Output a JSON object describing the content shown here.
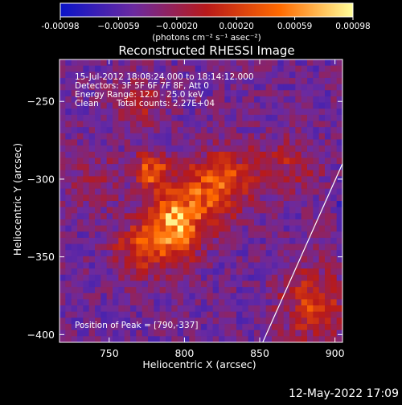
{
  "chart_data": {
    "type": "heatmap",
    "title": "Reconstructed RHESSI Image",
    "xlabel": "Heliocentric X (arcsec)",
    "ylabel": "Heliocentric Y (arcsec)",
    "xlim": [
      717,
      905
    ],
    "ylim": [
      -405,
      -223
    ],
    "x_ticks": [
      750,
      800,
      850,
      900
    ],
    "y_ticks": [
      -250,
      -300,
      -350,
      -400
    ],
    "x_tick_labels": [
      "750",
      "800",
      "850",
      "900"
    ],
    "y_tick_labels": [
      "−250",
      "−300",
      "−350",
      "−400"
    ],
    "grid": false,
    "colorbar": {
      "range": [
        -0.00098,
        0.00098
      ],
      "tick_values": [
        -0.00098,
        -0.00059,
        -0.0002,
        0.0002,
        0.00059,
        0.00098
      ],
      "tick_labels": [
        "-0.00098",
        "−0.00059",
        "−0.00020",
        "0.00020",
        "0.00059",
        "0.00098"
      ],
      "units_label": "(photons cm⁻² s⁻¹ asec⁻²)",
      "colors": [
        "#0a14c8",
        "#6b2aa0",
        "#b81a1a",
        "#ff6a00",
        "#ffff9a"
      ]
    },
    "annotations": [
      "15-Jul-2012 18:08:24.000 to 18:14:12.000",
      "Detectors: 3F 5F 6F 7F 8F, Att 0",
      "Energy Range: 12.0 - 25.0 keV",
      "Clean",
      "Total counts: 2.27E+04"
    ],
    "peak_label": "Position of Peak = [790,-337]",
    "peak_position": [
      790,
      -337
    ],
    "limb_line": [
      [
        852,
        -405
      ],
      [
        905,
        -290
      ]
    ],
    "limb_color": "#ffffff",
    "grid_nx": 48,
    "grid_ny": 46,
    "sources": [
      {
        "x": 793,
        "y": -330,
        "sx": 12,
        "sy": 16,
        "amp": 0.00098
      },
      {
        "x": 778,
        "y": -294,
        "sx": 8,
        "sy": 8,
        "amp": 0.0008
      },
      {
        "x": 815,
        "y": -312,
        "sx": 16,
        "sy": 14,
        "amp": 0.00065
      },
      {
        "x": 770,
        "y": -345,
        "sx": 12,
        "sy": 12,
        "amp": 0.0006
      },
      {
        "x": 830,
        "y": -295,
        "sx": 14,
        "sy": 12,
        "amp": 0.00045
      },
      {
        "x": 770,
        "y": -250,
        "sx": 12,
        "sy": 10,
        "amp": 0.0004
      },
      {
        "x": 885,
        "y": -380,
        "sx": 14,
        "sy": 18,
        "amp": 0.0006
      },
      {
        "x": 870,
        "y": -290,
        "sx": 15,
        "sy": 12,
        "amp": 0.00035
      },
      {
        "x": 740,
        "y": -300,
        "sx": 12,
        "sy": 14,
        "amp": 0.00025
      }
    ]
  },
  "footer": {
    "date": "12-May-2022 17:09"
  }
}
